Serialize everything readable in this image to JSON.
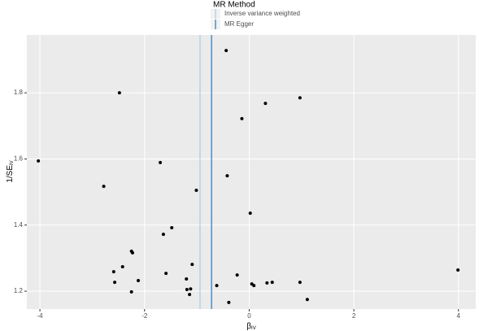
{
  "chart_data": {
    "type": "scatter",
    "legend_title": "MR Method",
    "xlabel": {
      "text": "β",
      "subscript": "IV"
    },
    "ylabel": {
      "text": "1/SE",
      "subscript": "IV"
    },
    "xlim": [
      -4.25,
      4.33
    ],
    "ylim": [
      1.146,
      1.975
    ],
    "xticks": [
      -4,
      -2,
      0,
      2,
      4
    ],
    "yticks": [
      1.2,
      1.4,
      1.6,
      1.8
    ],
    "grid": true,
    "legend": "top",
    "point_color": "#000000",
    "x": [
      -4.03,
      -2.78,
      -2.48,
      -1.7,
      -1.01,
      -0.44,
      -0.14,
      0.31,
      0.97,
      -0.42,
      0.02,
      -1.48,
      -1.64,
      -2.25,
      -2.23,
      -2.42,
      -2.59,
      -1.59,
      -1.09,
      -2.57,
      -2.12,
      -1.2,
      -1.19,
      -1.12,
      -1.14,
      -2.25,
      -0.62,
      -0.23,
      0.05,
      0.09,
      0.34,
      0.44,
      0.97,
      -0.39,
      1.11,
      3.99
    ],
    "values": [
      1.594,
      1.517,
      1.8,
      1.589,
      1.505,
      1.928,
      1.722,
      1.768,
      1.785,
      1.549,
      1.436,
      1.392,
      1.372,
      1.321,
      1.316,
      1.274,
      1.259,
      1.254,
      1.281,
      1.227,
      1.232,
      1.237,
      1.205,
      1.207,
      1.19,
      1.198,
      1.217,
      1.249,
      1.222,
      1.217,
      1.225,
      1.227,
      1.227,
      1.166,
      1.175,
      1.264
    ],
    "series": [
      {
        "name": "Inverse variance weighted",
        "color": "#a6cee3",
        "value": -0.94
      },
      {
        "name": "MR Egger",
        "color": "#1f78b4",
        "value": -0.72
      }
    ]
  }
}
